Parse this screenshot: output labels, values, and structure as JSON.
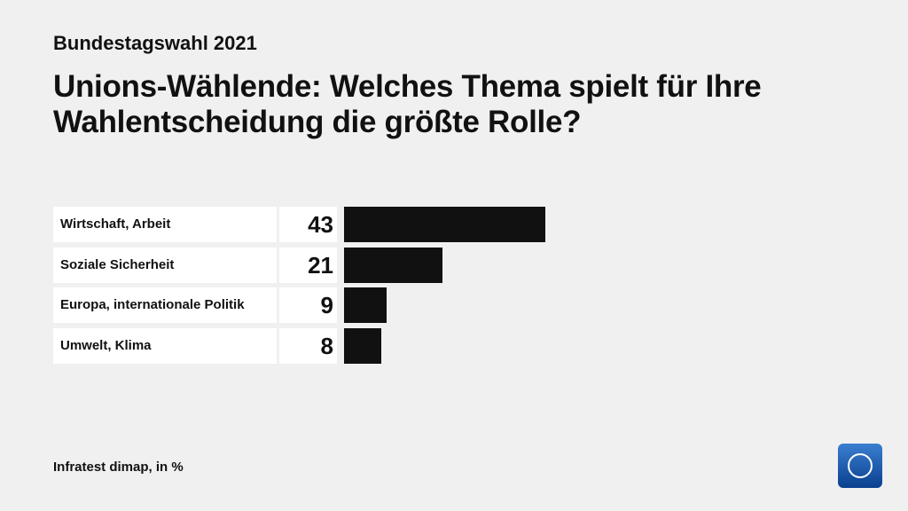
{
  "chart_data": {
    "type": "bar",
    "supertitle": "Bundestagswahl 2021",
    "title": "Unions-Wählende: Welches Thema spielt für Ihre Wahlentscheidung die größte Rolle?",
    "categories": [
      "Wirtschaft, Arbeit",
      "Soziale Sicherheit",
      "Europa, internationale Politik",
      "Umwelt, Klima"
    ],
    "values": [
      43,
      21,
      9,
      8
    ],
    "color": "#111111",
    "source": "Infratest dimap, in %"
  }
}
